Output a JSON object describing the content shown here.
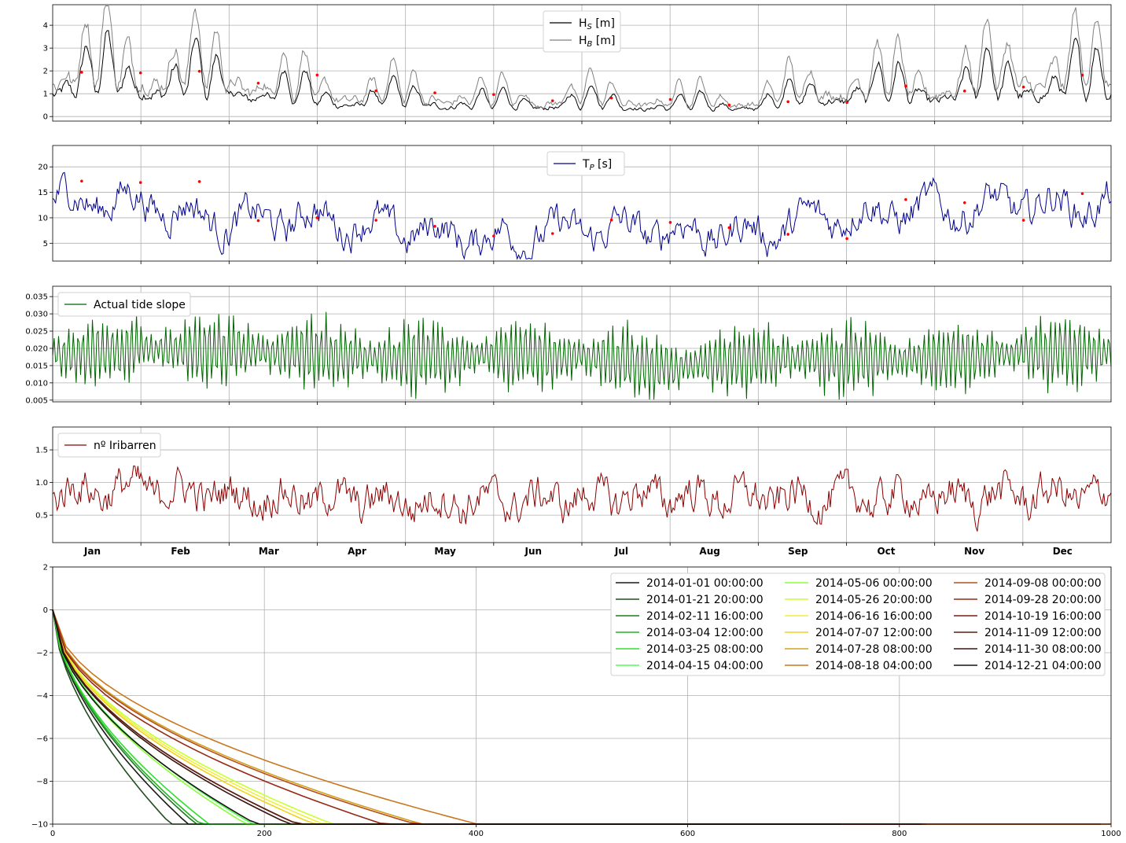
{
  "months": [
    "Jan",
    "Feb",
    "Mar",
    "Apr",
    "May",
    "Jun",
    "Jul",
    "Aug",
    "Sep",
    "Oct",
    "Nov",
    "Dec"
  ],
  "chart_data": [
    {
      "type": "line",
      "panel": "wave-heights",
      "ylim": [
        -0.2,
        4.9
      ],
      "yticks": [
        "0",
        "1",
        "2",
        "3",
        "4"
      ],
      "grid": true,
      "legend_position": "top-center",
      "series": [
        {
          "name": "H_S [m]",
          "label_main": "H",
          "label_sub": "S",
          "label_tail": " [m]",
          "color": "#000000",
          "month_mean": [
            1.7,
            1.8,
            1.5,
            0.9,
            0.8,
            0.6,
            0.7,
            0.5,
            0.6,
            1.2,
            1.2,
            1.6
          ]
        },
        {
          "name": "H_B [m]",
          "label_main": "H",
          "label_sub": "B",
          "label_tail": " [m]",
          "color": "#808080",
          "month_mean": [
            2.4,
            2.6,
            2.1,
            1.3,
            1.2,
            0.9,
            1.0,
            0.8,
            0.9,
            1.7,
            1.7,
            2.3
          ]
        }
      ],
      "marker_color": "#ff0000"
    },
    {
      "type": "line",
      "panel": "peak-period",
      "ylim": [
        1.5,
        24.2
      ],
      "yticks": [
        "5",
        "10",
        "15",
        "20"
      ],
      "grid": true,
      "legend_position": "top-center",
      "series": [
        {
          "name": "T_P [s]",
          "label_main": "T",
          "label_sub": "P",
          "label_tail": " [s]",
          "color": "#00008b",
          "month_mean": [
            13.5,
            13.5,
            9.0,
            10.0,
            7.5,
            6.0,
            7.5,
            7.5,
            7.0,
            11.0,
            11.5,
            12.5
          ]
        }
      ],
      "marker_color": "#ff0000"
    },
    {
      "type": "line",
      "panel": "tide-slope",
      "ylim": [
        0.0045,
        0.038
      ],
      "yticks": [
        "0.005",
        "0.010",
        "0.015",
        "0.020",
        "0.025",
        "0.030",
        "0.035"
      ],
      "grid": true,
      "legend_position": "top-left",
      "series": [
        {
          "name": "Actual tide slope",
          "label_main": "Actual tide slope",
          "label_sub": "",
          "label_tail": "",
          "color": "#006400",
          "month_mean": [
            0.018,
            0.02,
            0.019,
            0.018,
            0.017,
            0.018,
            0.018,
            0.014,
            0.017,
            0.017,
            0.017,
            0.019
          ]
        }
      ]
    },
    {
      "type": "line",
      "panel": "iribarren",
      "ylim": [
        0.08,
        1.85
      ],
      "yticks": [
        "0.5",
        "1.0",
        "1.5"
      ],
      "grid": true,
      "legend_position": "top-left",
      "series": [
        {
          "name": "nº Iribarren",
          "label_main": "nº Iribarren",
          "label_sub": "",
          "label_tail": "",
          "color": "#8b0000",
          "month_mean": [
            0.7,
            0.75,
            0.65,
            0.6,
            0.55,
            0.55,
            0.6,
            0.65,
            0.6,
            0.6,
            0.6,
            0.65
          ]
        }
      ]
    },
    {
      "type": "line",
      "panel": "profiles",
      "xlim": [
        0,
        1000
      ],
      "ylim": [
        -10,
        2
      ],
      "xticks": [
        "0",
        "200",
        "400",
        "600",
        "800",
        "1000"
      ],
      "yticks": [
        "2",
        "0",
        "−2",
        "−4",
        "−6",
        "−8",
        "−10"
      ],
      "grid": true,
      "legend_position": "top-right",
      "series": [
        {
          "name": "2014-01-01 00:00:00",
          "color": "#1a1a1a",
          "x_end": 513,
          "a": 0.6,
          "p": 0.58
        },
        {
          "name": "2014-01-21 20:00:00",
          "color": "#1f4f1f",
          "x_end": 502,
          "a": 0.62,
          "p": 0.59
        },
        {
          "name": "2014-02-11 16:00:00",
          "color": "#1e7a1e",
          "x_end": 545,
          "a": 0.58,
          "p": 0.58
        },
        {
          "name": "2014-03-04 12:00:00",
          "color": "#22b422",
          "x_end": 548,
          "a": 0.57,
          "p": 0.58
        },
        {
          "name": "2014-03-25 08:00:00",
          "color": "#2ee02e",
          "x_end": 562,
          "a": 0.58,
          "p": 0.57
        },
        {
          "name": "2014-04-15 04:00:00",
          "color": "#50ff50",
          "x_end": 660,
          "a": 0.56,
          "p": 0.55
        },
        {
          "name": "2014-05-06 00:00:00",
          "color": "#8cff3c",
          "x_end": 640,
          "a": 0.57,
          "p": 0.55
        },
        {
          "name": "2014-05-26 20:00:00",
          "color": "#c8ff32",
          "x_end": 850,
          "a": 0.55,
          "p": 0.52
        },
        {
          "name": "2014-06-16 16:00:00",
          "color": "#f0f03c",
          "x_end": 845,
          "a": 0.56,
          "p": 0.52
        },
        {
          "name": "2014-07-07 12:00:00",
          "color": "#f0d21e",
          "x_end": 830,
          "a": 0.57,
          "p": 0.52
        },
        {
          "name": "2014-07-28 08:00:00",
          "color": "#d2a01e",
          "x_end": 1000,
          "a": 0.52,
          "p": 0.505
        },
        {
          "name": "2014-08-18 04:00:00",
          "color": "#c8781e",
          "x_end": 1000,
          "a": 0.47,
          "p": 0.51
        },
        {
          "name": "2014-09-08 00:00:00",
          "color": "#b4501e",
          "x_end": 1000,
          "a": 0.54,
          "p": 0.5
        },
        {
          "name": "2014-09-28 20:00:00",
          "color": "#962814",
          "x_end": 990,
          "a": 0.55,
          "p": 0.505
        },
        {
          "name": "2014-10-19 16:00:00",
          "color": "#781e14",
          "x_end": 825,
          "a": 0.59,
          "p": 0.52
        },
        {
          "name": "2014-11-09 12:00:00",
          "color": "#5a1e14",
          "x_end": 822,
          "a": 0.59,
          "p": 0.52
        },
        {
          "name": "2014-11-30 08:00:00",
          "color": "#3c140f",
          "x_end": 820,
          "a": 0.6,
          "p": 0.52
        },
        {
          "name": "2014-12-21 04:00:00",
          "color": "#141414",
          "x_end": 745,
          "a": 0.6,
          "p": 0.535
        }
      ]
    }
  ]
}
